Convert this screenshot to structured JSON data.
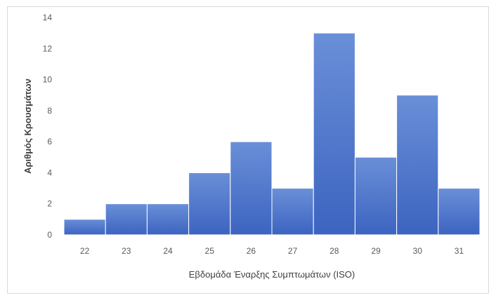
{
  "chart_data": {
    "type": "bar",
    "categories": [
      "22",
      "23",
      "24",
      "25",
      "26",
      "27",
      "28",
      "29",
      "30",
      "31"
    ],
    "values": [
      1,
      2,
      2,
      4,
      6,
      3,
      13,
      5,
      9,
      3
    ],
    "xlabel": "Εβδομάδα Έναρξης Συμπτωμάτων (ISO)",
    "ylabel": "Αριθμός Κρουσμάτων",
    "ylim": [
      0,
      14
    ],
    "yticks": [
      0,
      2,
      4,
      6,
      8,
      10,
      12,
      14
    ],
    "grid": false,
    "bar_color": "#4472C4",
    "bar_gap": 0
  }
}
